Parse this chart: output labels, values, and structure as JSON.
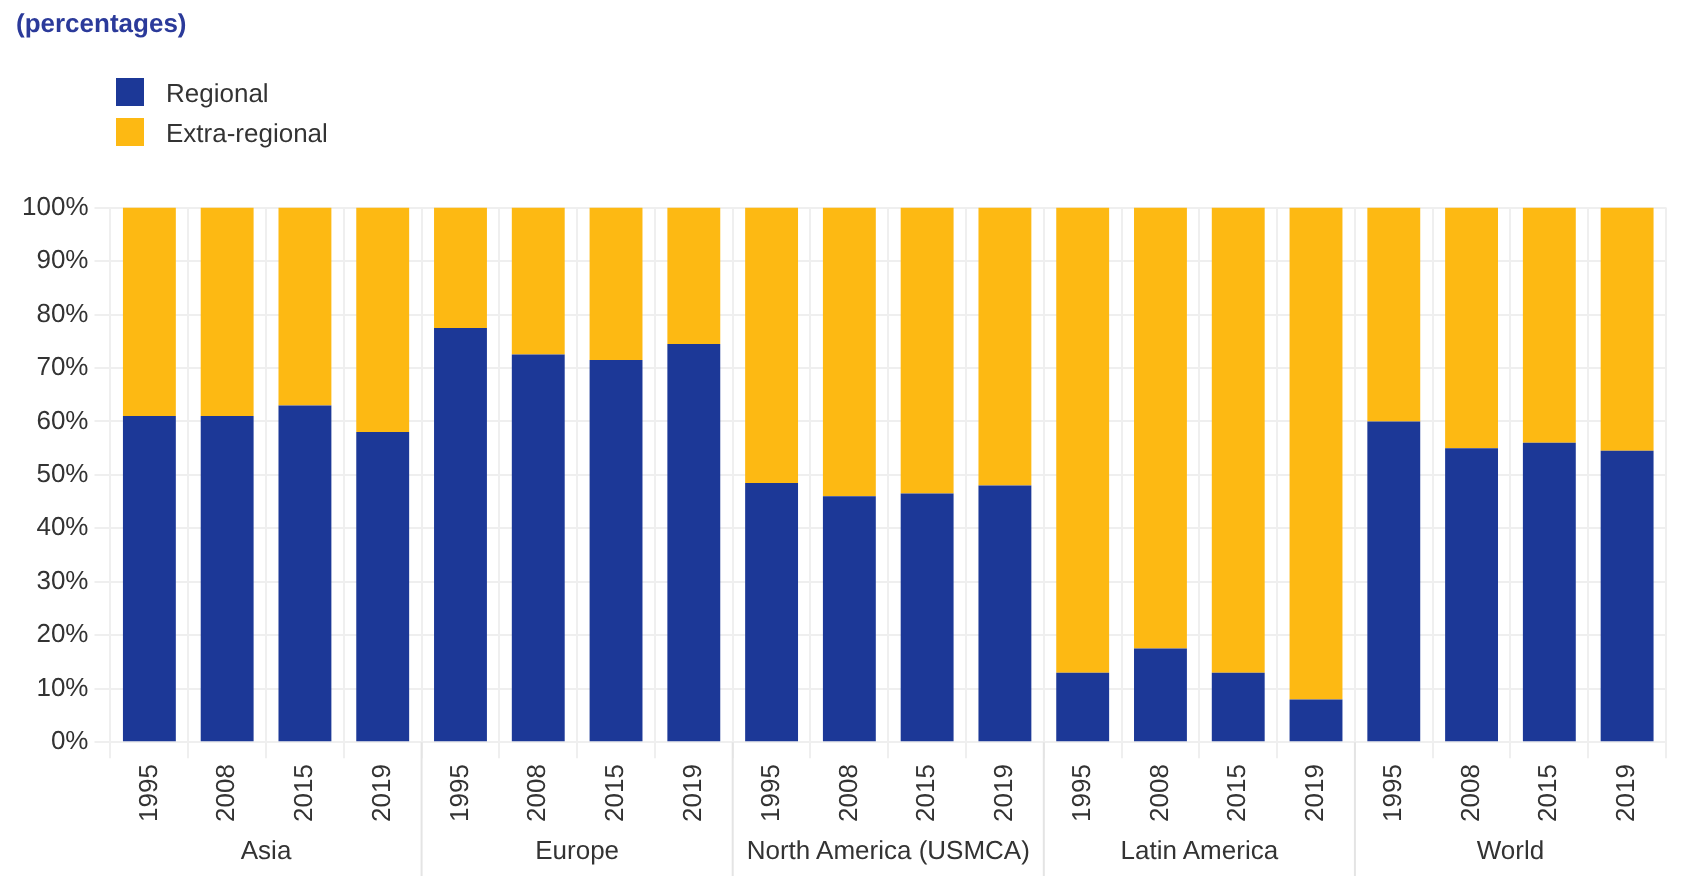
{
  "chart_data": {
    "type": "bar",
    "subtitle": "(percentages)",
    "stacked": true,
    "categories": [
      "1995",
      "2008",
      "2015",
      "2019",
      "1995",
      "2008",
      "2015",
      "2019",
      "1995",
      "2008",
      "2015",
      "2019",
      "1995",
      "2008",
      "2015",
      "2019",
      "1995",
      "2008",
      "2015",
      "2019"
    ],
    "series": [
      {
        "name": "Regional",
        "color": "#1c3897",
        "values": [
          61,
          61,
          63,
          58,
          77.5,
          72.5,
          71.5,
          74.5,
          48.5,
          46,
          46.5,
          48,
          13,
          17.5,
          13,
          8,
          60,
          55,
          56,
          54.5
        ]
      },
      {
        "name": "Extra-regional",
        "color": "#fdb913",
        "values": [
          39,
          39,
          37,
          42,
          22.5,
          27.5,
          28.5,
          25.5,
          51.5,
          54,
          53.5,
          52,
          87,
          82.5,
          87,
          92,
          40,
          45,
          44,
          45.5
        ]
      }
    ],
    "annotations": [
      "Asia",
      "Europe",
      "North America (USMCA)",
      "Latin America",
      "World"
    ],
    "ylim": [
      0,
      100
    ],
    "yticks": [
      {
        "value": 0,
        "label": "0%"
      },
      {
        "value": 10,
        "label": "10%"
      },
      {
        "value": 20,
        "label": "20%"
      },
      {
        "value": 30,
        "label": "30%"
      },
      {
        "value": 40,
        "label": "40%"
      },
      {
        "value": 50,
        "label": "50%"
      },
      {
        "value": 60,
        "label": "60%"
      },
      {
        "value": 70,
        "label": "70%"
      },
      {
        "value": 80,
        "label": "80%"
      },
      {
        "value": 90,
        "label": "90%"
      },
      {
        "value": 100,
        "label": "100%"
      }
    ],
    "grid": true,
    "legend": "top left"
  }
}
